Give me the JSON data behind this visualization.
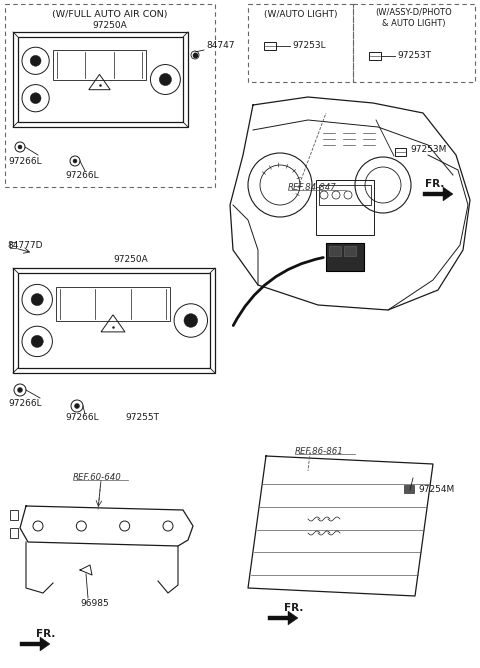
{
  "bg_color": "#ffffff",
  "line_color": "#1a1a1a",
  "fig_width": 4.8,
  "fig_height": 6.68,
  "dpi": 100,
  "labels": {
    "top_left_title": "(W/FULL AUTO AIR CON)",
    "top_left_97250A": "97250A",
    "top_left_84747": "84747",
    "top_left_97266L_a": "97266L",
    "top_left_97266L_b": "97266L",
    "mid_97250A": "97250A",
    "mid_84777D": "84777D",
    "mid_97266L_a": "97266L",
    "mid_97266L_b": "97266L",
    "mid_97255T": "97255T",
    "box1_title": "(W/AUTO LIGHT)",
    "box1_part": "97253L",
    "box2_title": "(W/ASSY-D/PHOTO\n& AUTO LIGHT)",
    "box2_part": "97253T",
    "ref84847": "REF.84-847",
    "ref86861": "REF.86-861",
    "ref60640": "REF.60-640",
    "part_97253M": "97253M",
    "part_97254M": "97254M",
    "part_96985": "96985",
    "fr": "FR."
  }
}
